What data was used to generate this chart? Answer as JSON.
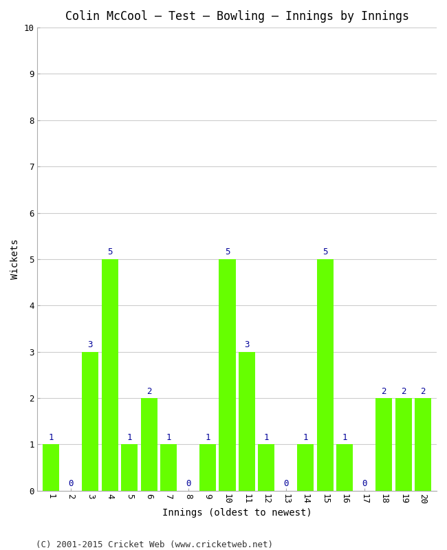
{
  "title": "Colin McCool – Test – Bowling – Innings by Innings",
  "xlabel": "Innings (oldest to newest)",
  "ylabel": "Wickets",
  "innings": [
    1,
    2,
    3,
    4,
    5,
    6,
    7,
    8,
    9,
    10,
    11,
    12,
    13,
    14,
    15,
    16,
    17,
    18,
    19,
    20
  ],
  "wickets": [
    1,
    0,
    3,
    5,
    1,
    2,
    1,
    0,
    1,
    5,
    3,
    1,
    0,
    1,
    5,
    1,
    0,
    2,
    2,
    2
  ],
  "bar_color": "#66ff00",
  "label_color": "#000099",
  "ylim": [
    0,
    10
  ],
  "yticks": [
    0,
    1,
    2,
    3,
    4,
    5,
    6,
    7,
    8,
    9,
    10
  ],
  "background_color": "#ffffff",
  "grid_color": "#cccccc",
  "title_fontsize": 12,
  "axis_label_fontsize": 10,
  "tick_fontsize": 9,
  "label_fontsize": 9,
  "footer_text": "(C) 2001-2015 Cricket Web (www.cricketweb.net)",
  "footer_fontsize": 9
}
